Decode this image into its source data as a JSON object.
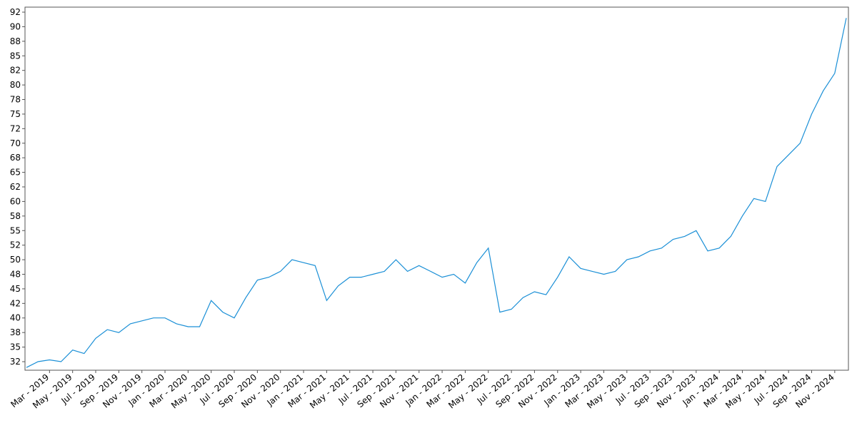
{
  "chart_data": {
    "type": "line",
    "x": [
      "2019-01",
      "2019-02",
      "2019-03",
      "2019-04",
      "2019-05",
      "2019-06",
      "2019-07",
      "2019-08",
      "2019-09",
      "2019-10",
      "2019-11",
      "2019-12",
      "2020-01",
      "2020-02",
      "2020-03",
      "2020-04",
      "2020-05",
      "2020-06",
      "2020-07",
      "2020-08",
      "2020-09",
      "2020-10",
      "2020-11",
      "2020-12",
      "2021-01",
      "2021-02",
      "2021-03",
      "2021-04",
      "2021-05",
      "2021-06",
      "2021-07",
      "2021-08",
      "2021-09",
      "2021-10",
      "2021-11",
      "2021-12",
      "2022-01",
      "2022-02",
      "2022-03",
      "2022-04",
      "2022-05",
      "2022-06",
      "2022-07",
      "2022-08",
      "2022-09",
      "2022-10",
      "2022-11",
      "2022-12",
      "2023-01",
      "2023-02",
      "2023-03",
      "2023-04",
      "2023-05",
      "2023-06",
      "2023-07",
      "2023-08",
      "2023-09",
      "2023-10",
      "2023-11",
      "2023-12",
      "2024-01",
      "2024-02",
      "2024-03",
      "2024-04",
      "2024-05",
      "2024-06",
      "2024-07",
      "2024-08",
      "2024-09",
      "2024-10",
      "2024-11",
      "2024-12"
    ],
    "series": [
      {
        "color": "#1a8fd6",
        "values": [
          31.5,
          32.5,
          32.8,
          32.5,
          34.5,
          33.9,
          36.5,
          38.0,
          37.5,
          39.0,
          39.5,
          40.0,
          40.0,
          39.0,
          38.5,
          38.5,
          43.0,
          41.0,
          40.0,
          43.5,
          46.5,
          47.0,
          48.0,
          50.0,
          49.5,
          49.0,
          43.0,
          45.5,
          47.0,
          47.0,
          47.5,
          48.0,
          50.0,
          48.0,
          49.0,
          48.0,
          47.0,
          47.5,
          46.0,
          49.5,
          52.0,
          41.0,
          41.5,
          43.5,
          44.5,
          44.0,
          47.0,
          50.5,
          48.5,
          48.0,
          47.5,
          48.0,
          50.0,
          50.5,
          51.5,
          52.0,
          53.5,
          54.0,
          55.0,
          51.5,
          52.0,
          54.0,
          57.5,
          60.5,
          60.0,
          66.0,
          68.0,
          70.0,
          75.0,
          79.0,
          82.0,
          91.5
        ]
      }
    ],
    "xlim": [
      "2019-01",
      "2024-12"
    ],
    "xticks": [
      {
        "value": "2019-03",
        "label": "Mar - 2019"
      },
      {
        "value": "2019-05",
        "label": "May - 2019"
      },
      {
        "value": "2019-07",
        "label": "Jul - 2019"
      },
      {
        "value": "2019-09",
        "label": "Sep - 2019"
      },
      {
        "value": "2019-11",
        "label": "Nov - 2019"
      },
      {
        "value": "2020-01",
        "label": "Jan - 2020"
      },
      {
        "value": "2020-03",
        "label": "Mar - 2020"
      },
      {
        "value": "2020-05",
        "label": "May - 2020"
      },
      {
        "value": "2020-07",
        "label": "Jul - 2020"
      },
      {
        "value": "2020-09",
        "label": "Sep - 2020"
      },
      {
        "value": "2020-11",
        "label": "Nov - 2020"
      },
      {
        "value": "2021-01",
        "label": "Jan - 2021"
      },
      {
        "value": "2021-03",
        "label": "Mar - 2021"
      },
      {
        "value": "2021-05",
        "label": "May - 2021"
      },
      {
        "value": "2021-07",
        "label": "Jul - 2021"
      },
      {
        "value": "2021-09",
        "label": "Sep - 2021"
      },
      {
        "value": "2021-11",
        "label": "Nov - 2021"
      },
      {
        "value": "2022-01",
        "label": "Jan - 2022"
      },
      {
        "value": "2022-03",
        "label": "Mar - 2022"
      },
      {
        "value": "2022-05",
        "label": "May - 2022"
      },
      {
        "value": "2022-07",
        "label": "Jul - 2022"
      },
      {
        "value": "2022-09",
        "label": "Sep - 2022"
      },
      {
        "value": "2022-11",
        "label": "Nov - 2022"
      },
      {
        "value": "2023-01",
        "label": "Jan - 2023"
      },
      {
        "value": "2023-03",
        "label": "Mar - 2023"
      },
      {
        "value": "2023-05",
        "label": "May - 2023"
      },
      {
        "value": "2023-07",
        "label": "Jul - 2023"
      },
      {
        "value": "2023-09",
        "label": "Sep - 2023"
      },
      {
        "value": "2023-11",
        "label": "Nov - 2023"
      },
      {
        "value": "2024-01",
        "label": "Jan - 2024"
      },
      {
        "value": "2024-03",
        "label": "Mar - 2024"
      },
      {
        "value": "2024-05",
        "label": "May - 2024"
      },
      {
        "value": "2024-07",
        "label": "Jul - 2024"
      },
      {
        "value": "2024-09",
        "label": "Sep - 2024"
      },
      {
        "value": "2024-11",
        "label": "Nov - 2024"
      }
    ],
    "ylim": [
      31.03,
      93.36
    ],
    "yticks": [
      {
        "value": 32.5,
        "label": "32"
      },
      35,
      {
        "value": 37.5,
        "label": "38"
      },
      40,
      {
        "value": 42.5,
        "label": "42"
      },
      45,
      {
        "value": 47.5,
        "label": "48"
      },
      50,
      {
        "value": 52.5,
        "label": "52"
      },
      55,
      {
        "value": 57.5,
        "label": "58"
      },
      60,
      {
        "value": 62.5,
        "label": "62"
      },
      65,
      {
        "value": 67.5,
        "label": "68"
      },
      70,
      {
        "value": 72.5,
        "label": "72"
      },
      75,
      {
        "value": 77.5,
        "label": "78"
      },
      80,
      {
        "value": 82.5,
        "label": "82"
      },
      85,
      {
        "value": 87.5,
        "label": "88"
      },
      90,
      {
        "value": 92.5,
        "label": "92"
      }
    ]
  }
}
